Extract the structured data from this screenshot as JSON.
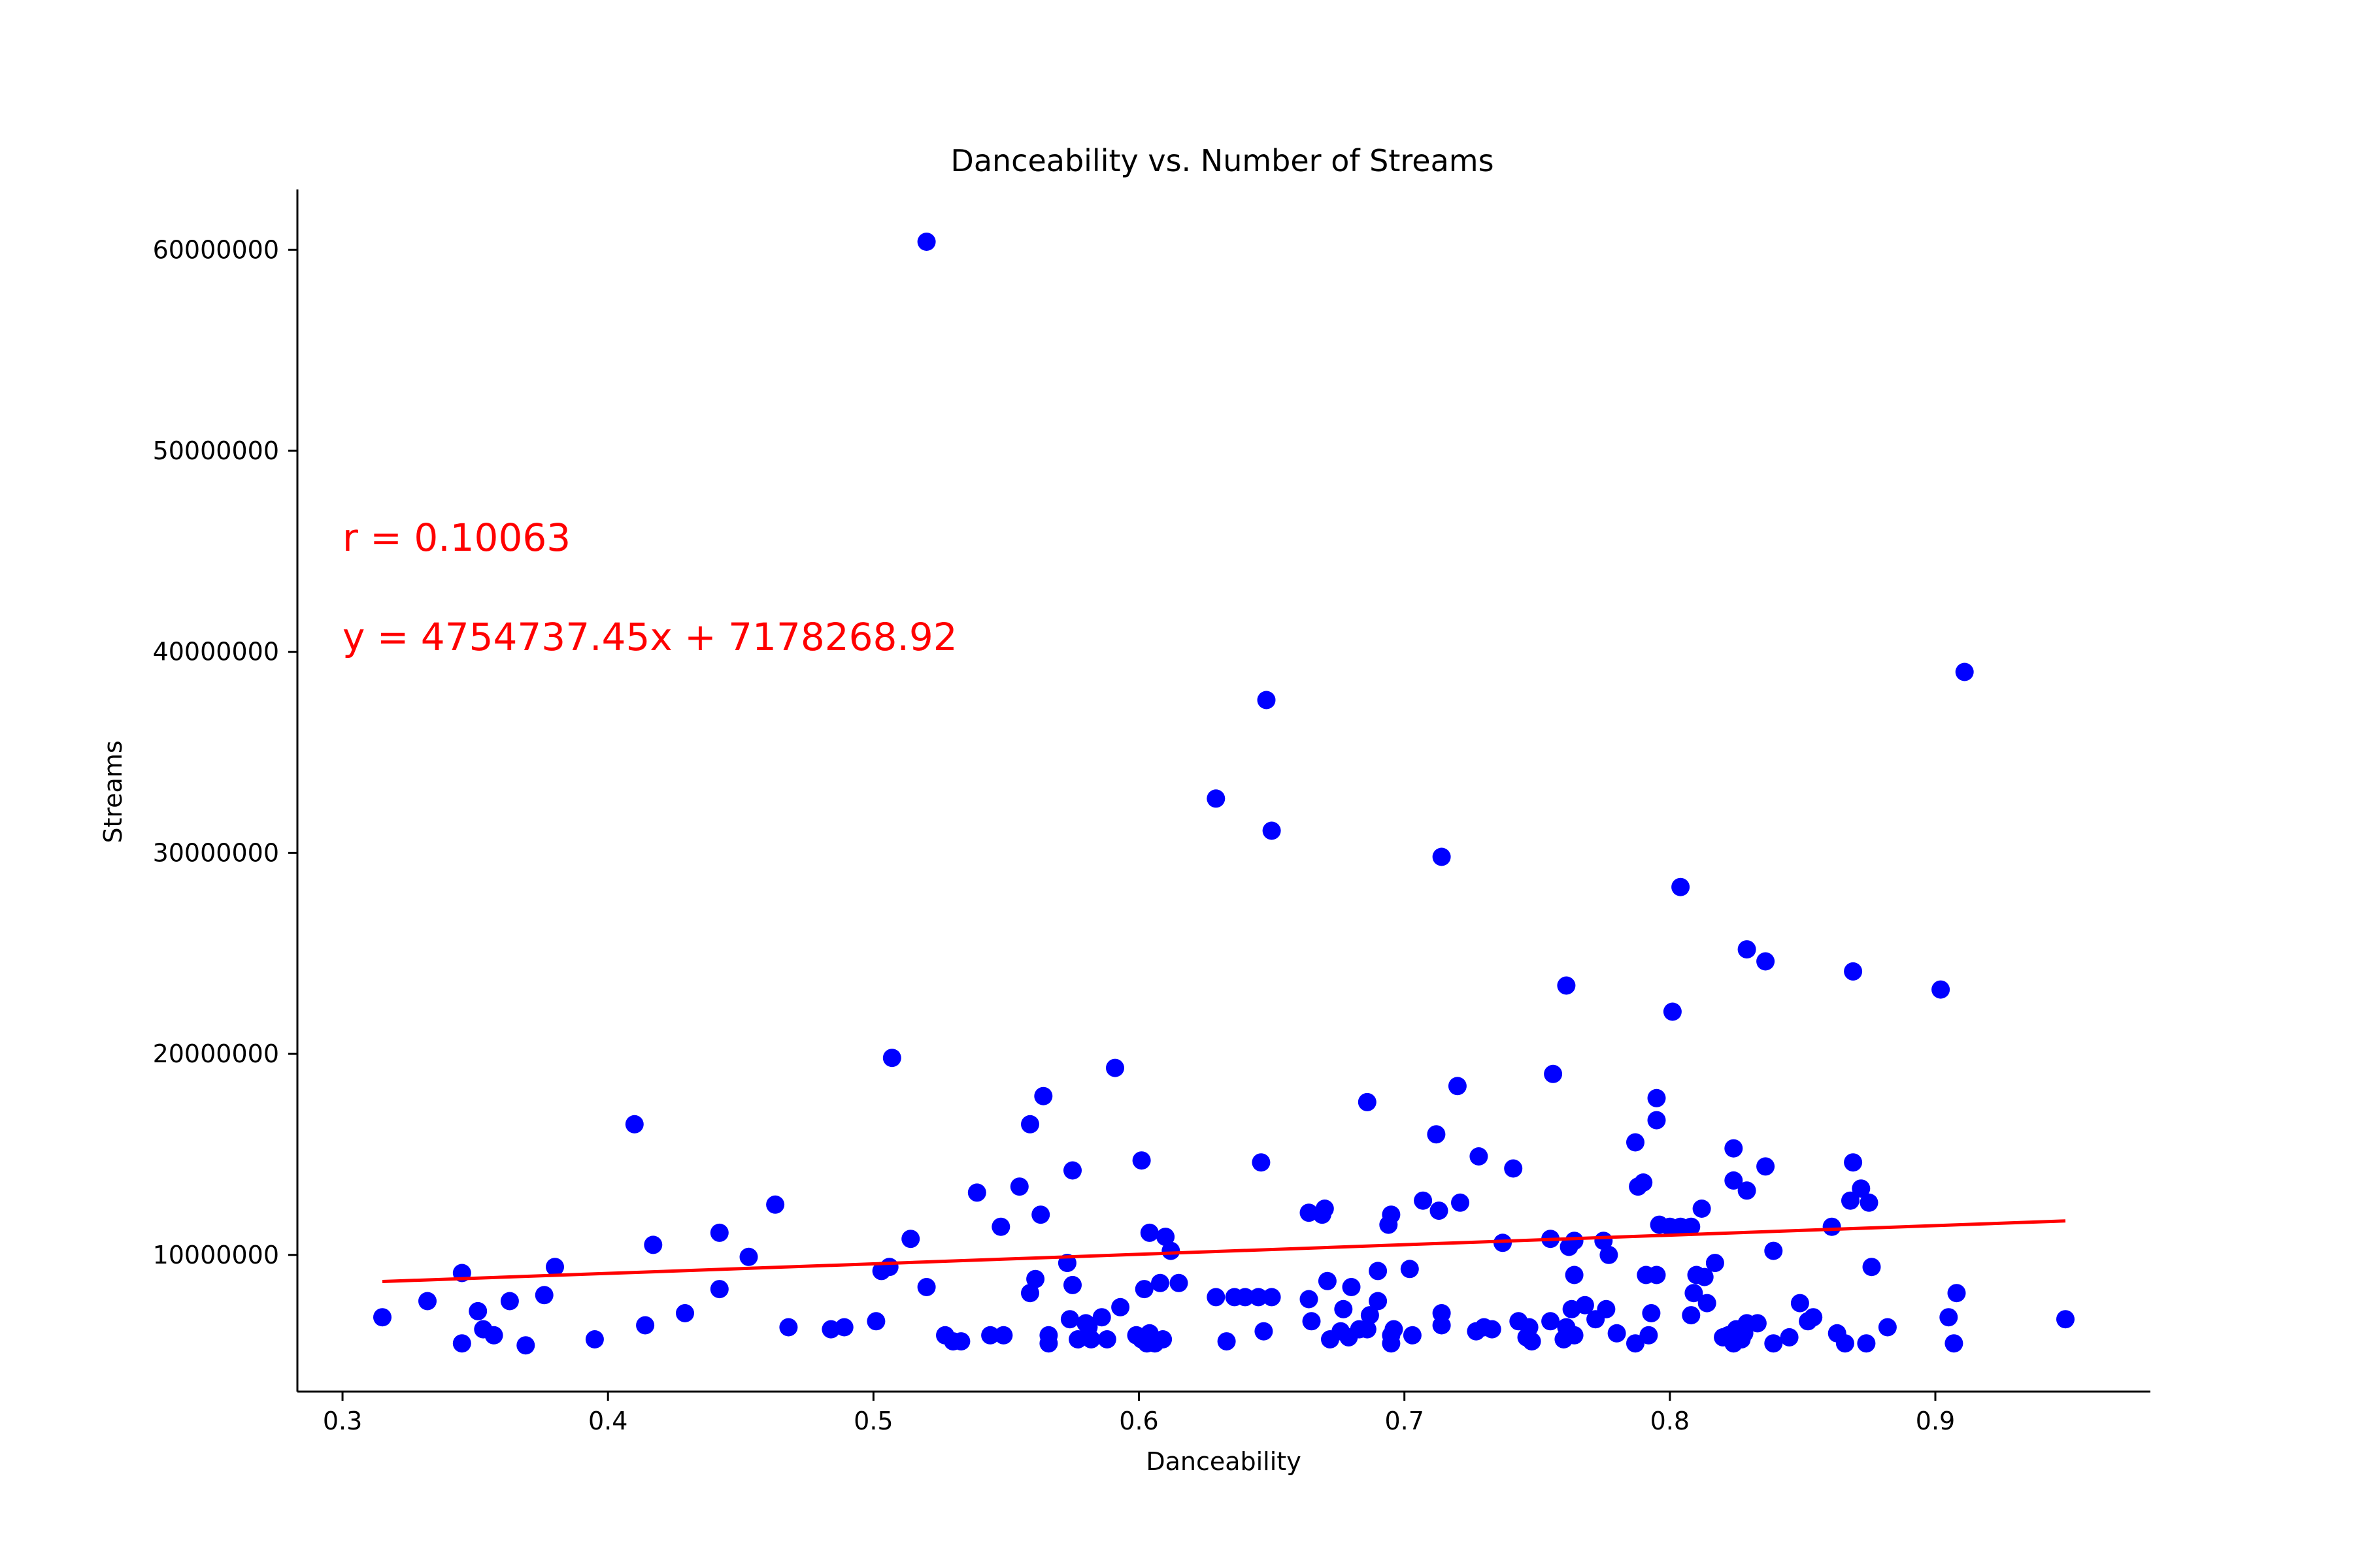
{
  "colors": {
    "points": "#0000ff",
    "trendline": "#ff0000",
    "annotations": "#ff0000",
    "axes": "#000000"
  },
  "chart_data": {
    "type": "scatter",
    "title": "Danceability vs. Number of Streams",
    "xlabel": "Danceability",
    "ylabel": "Streams",
    "xlim": [
      0.283,
      0.981
    ],
    "ylim": [
      3200000,
      63000000
    ],
    "xticks": [
      0.3,
      0.4,
      0.5,
      0.6,
      0.7,
      0.8,
      0.9
    ],
    "xtick_labels": [
      "0.3",
      "0.4",
      "0.5",
      "0.6",
      "0.7",
      "0.8",
      "0.9"
    ],
    "yticks": [
      10000000,
      20000000,
      30000000,
      40000000,
      50000000,
      60000000
    ],
    "ytick_labels": [
      "10000000",
      "20000000",
      "30000000",
      "40000000",
      "50000000",
      "60000000"
    ],
    "grid": false,
    "legend": "none",
    "annotations": [
      "r = 0.10063",
      "y = 4754737.45x + 7178268.92"
    ],
    "trendline": {
      "slope": 4754737.45,
      "intercept": 7178268.92,
      "x_range": [
        0.315,
        0.949
      ]
    },
    "points": [
      [
        0.315,
        6900000
      ],
      [
        0.332,
        7700000
      ],
      [
        0.345,
        9100000
      ],
      [
        0.345,
        5600000
      ],
      [
        0.351,
        7200000
      ],
      [
        0.353,
        6300000
      ],
      [
        0.357,
        6000000
      ],
      [
        0.363,
        7700000
      ],
      [
        0.369,
        5500000
      ],
      [
        0.376,
        8000000
      ],
      [
        0.38,
        9400000
      ],
      [
        0.395,
        5800000
      ],
      [
        0.41,
        16500000
      ],
      [
        0.414,
        6500000
      ],
      [
        0.417,
        10500000
      ],
      [
        0.429,
        7100000
      ],
      [
        0.442,
        11100000
      ],
      [
        0.442,
        8300000
      ],
      [
        0.453,
        9900000
      ],
      [
        0.463,
        12500000
      ],
      [
        0.468,
        6400000
      ],
      [
        0.484,
        6300000
      ],
      [
        0.489,
        6400000
      ],
      [
        0.501,
        6700000
      ],
      [
        0.503,
        9200000
      ],
      [
        0.506,
        9400000
      ],
      [
        0.507,
        19800000
      ],
      [
        0.514,
        10800000
      ],
      [
        0.52,
        8400000
      ],
      [
        0.52,
        60400000
      ],
      [
        0.527,
        6000000
      ],
      [
        0.53,
        5700000
      ],
      [
        0.533,
        5700000
      ],
      [
        0.539,
        13100000
      ],
      [
        0.544,
        6000000
      ],
      [
        0.548,
        11400000
      ],
      [
        0.549,
        6000000
      ],
      [
        0.555,
        13400000
      ],
      [
        0.559,
        8100000
      ],
      [
        0.559,
        16500000
      ],
      [
        0.561,
        8800000
      ],
      [
        0.563,
        12000000
      ],
      [
        0.564,
        17900000
      ],
      [
        0.566,
        5600000
      ],
      [
        0.566,
        6000000
      ],
      [
        0.573,
        9600000
      ],
      [
        0.574,
        6800000
      ],
      [
        0.575,
        8500000
      ],
      [
        0.575,
        14200000
      ],
      [
        0.577,
        5800000
      ],
      [
        0.58,
        6600000
      ],
      [
        0.581,
        6400000
      ],
      [
        0.582,
        5800000
      ],
      [
        0.586,
        6900000
      ],
      [
        0.588,
        5800000
      ],
      [
        0.591,
        19300000
      ],
      [
        0.593,
        7400000
      ],
      [
        0.599,
        6000000
      ],
      [
        0.601,
        5800000
      ],
      [
        0.601,
        14700000
      ],
      [
        0.602,
        8300000
      ],
      [
        0.603,
        5600000
      ],
      [
        0.604,
        11100000
      ],
      [
        0.604,
        6100000
      ],
      [
        0.606,
        5600000
      ],
      [
        0.608,
        8600000
      ],
      [
        0.609,
        5800000
      ],
      [
        0.61,
        10900000
      ],
      [
        0.612,
        10200000
      ],
      [
        0.615,
        8600000
      ],
      [
        0.629,
        7900000
      ],
      [
        0.629,
        32700000
      ],
      [
        0.633,
        5700000
      ],
      [
        0.636,
        7900000
      ],
      [
        0.64,
        7900000
      ],
      [
        0.645,
        7900000
      ],
      [
        0.646,
        14600000
      ],
      [
        0.647,
        6200000
      ],
      [
        0.648,
        37600000
      ],
      [
        0.65,
        7900000
      ],
      [
        0.65,
        31100000
      ],
      [
        0.664,
        7800000
      ],
      [
        0.664,
        12100000
      ],
      [
        0.665,
        6700000
      ],
      [
        0.669,
        12000000
      ],
      [
        0.67,
        12300000
      ],
      [
        0.671,
        8700000
      ],
      [
        0.672,
        5800000
      ],
      [
        0.676,
        6200000
      ],
      [
        0.677,
        7300000
      ],
      [
        0.679,
        5900000
      ],
      [
        0.68,
        8400000
      ],
      [
        0.683,
        6300000
      ],
      [
        0.686,
        17600000
      ],
      [
        0.686,
        6300000
      ],
      [
        0.687,
        7000000
      ],
      [
        0.69,
        9200000
      ],
      [
        0.69,
        7700000
      ],
      [
        0.694,
        11500000
      ],
      [
        0.695,
        5600000
      ],
      [
        0.695,
        6000000
      ],
      [
        0.695,
        12000000
      ],
      [
        0.696,
        6300000
      ],
      [
        0.702,
        9300000
      ],
      [
        0.703,
        6000000
      ],
      [
        0.707,
        12700000
      ],
      [
        0.712,
        16000000
      ],
      [
        0.713,
        12200000
      ],
      [
        0.714,
        6500000
      ],
      [
        0.714,
        7100000
      ],
      [
        0.714,
        29800000
      ],
      [
        0.72,
        18400000
      ],
      [
        0.721,
        12600000
      ],
      [
        0.727,
        6200000
      ],
      [
        0.728,
        14900000
      ],
      [
        0.73,
        6400000
      ],
      [
        0.733,
        6300000
      ],
      [
        0.737,
        10600000
      ],
      [
        0.741,
        14300000
      ],
      [
        0.743,
        6700000
      ],
      [
        0.746,
        5900000
      ],
      [
        0.747,
        6400000
      ],
      [
        0.748,
        5700000
      ],
      [
        0.755,
        6700000
      ],
      [
        0.755,
        10800000
      ],
      [
        0.756,
        19000000
      ],
      [
        0.76,
        5800000
      ],
      [
        0.761,
        6400000
      ],
      [
        0.761,
        23400000
      ],
      [
        0.762,
        10400000
      ],
      [
        0.763,
        7300000
      ],
      [
        0.764,
        9000000
      ],
      [
        0.764,
        10700000
      ],
      [
        0.764,
        6000000
      ],
      [
        0.768,
        7500000
      ],
      [
        0.772,
        6800000
      ],
      [
        0.775,
        10700000
      ],
      [
        0.776,
        7300000
      ],
      [
        0.777,
        10000000
      ],
      [
        0.78,
        6100000
      ],
      [
        0.787,
        5600000
      ],
      [
        0.787,
        15600000
      ],
      [
        0.788,
        13400000
      ],
      [
        0.79,
        13600000
      ],
      [
        0.791,
        9000000
      ],
      [
        0.792,
        6000000
      ],
      [
        0.793,
        7100000
      ],
      [
        0.795,
        9000000
      ],
      [
        0.795,
        17800000
      ],
      [
        0.795,
        16700000
      ],
      [
        0.796,
        11500000
      ],
      [
        0.8,
        11400000
      ],
      [
        0.801,
        22100000
      ],
      [
        0.804,
        28300000
      ],
      [
        0.804,
        11400000
      ],
      [
        0.808,
        11400000
      ],
      [
        0.808,
        7000000
      ],
      [
        0.809,
        8100000
      ],
      [
        0.81,
        9000000
      ],
      [
        0.812,
        12300000
      ],
      [
        0.813,
        8900000
      ],
      [
        0.814,
        7600000
      ],
      [
        0.817,
        9600000
      ],
      [
        0.82,
        5900000
      ],
      [
        0.822,
        6000000
      ],
      [
        0.824,
        5600000
      ],
      [
        0.824,
        15300000
      ],
      [
        0.824,
        13700000
      ],
      [
        0.825,
        6300000
      ],
      [
        0.827,
        5800000
      ],
      [
        0.828,
        6100000
      ],
      [
        0.829,
        6600000
      ],
      [
        0.829,
        13200000
      ],
      [
        0.829,
        25200000
      ],
      [
        0.833,
        6600000
      ],
      [
        0.836,
        24600000
      ],
      [
        0.836,
        14400000
      ],
      [
        0.839,
        10200000
      ],
      [
        0.839,
        5600000
      ],
      [
        0.845,
        5900000
      ],
      [
        0.849,
        7600000
      ],
      [
        0.852,
        6700000
      ],
      [
        0.854,
        6900000
      ],
      [
        0.861,
        11400000
      ],
      [
        0.863,
        6100000
      ],
      [
        0.866,
        5600000
      ],
      [
        0.868,
        12700000
      ],
      [
        0.869,
        14600000
      ],
      [
        0.869,
        24100000
      ],
      [
        0.872,
        13300000
      ],
      [
        0.874,
        5600000
      ],
      [
        0.875,
        12600000
      ],
      [
        0.876,
        9400000
      ],
      [
        0.882,
        6400000
      ],
      [
        0.902,
        23200000
      ],
      [
        0.905,
        6900000
      ],
      [
        0.907,
        5600000
      ],
      [
        0.908,
        8100000
      ],
      [
        0.911,
        39000000
      ],
      [
        0.949,
        6800000
      ]
    ]
  }
}
